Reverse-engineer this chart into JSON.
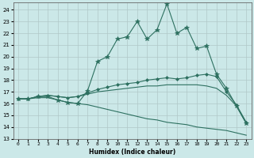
{
  "xlabel": "Humidex (Indice chaleur)",
  "background_color": "#cbe8e8",
  "grid_color": "#b0c8c8",
  "line_color": "#2d7060",
  "xlim": [
    -0.5,
    23.5
  ],
  "ylim": [
    13,
    24.6
  ],
  "yticks": [
    13,
    14,
    15,
    16,
    17,
    18,
    19,
    20,
    21,
    22,
    23,
    24
  ],
  "xticks": [
    0,
    1,
    2,
    3,
    4,
    5,
    6,
    7,
    8,
    9,
    10,
    11,
    12,
    13,
    14,
    15,
    16,
    17,
    18,
    19,
    20,
    21,
    22,
    23
  ],
  "series": [
    {
      "x": [
        0,
        1,
        2,
        3,
        4,
        5,
        6,
        7,
        8,
        9,
        10,
        11,
        12,
        13,
        14,
        15,
        16,
        17,
        18,
        19,
        20,
        21,
        22,
        23
      ],
      "y": [
        16.4,
        16.4,
        16.6,
        16.6,
        16.3,
        16.1,
        16.0,
        17.1,
        19.6,
        20.0,
        21.5,
        21.7,
        23.0,
        21.5,
        22.3,
        24.5,
        22.0,
        22.5,
        20.7,
        20.9,
        18.5,
        17.3,
        15.8,
        14.3
      ],
      "marker": "*",
      "markersize": 4.0,
      "linewidth": 0.8
    },
    {
      "x": [
        0,
        1,
        2,
        3,
        4,
        5,
        6,
        7,
        8,
        9,
        10,
        11,
        12,
        13,
        14,
        15,
        16,
        17,
        18,
        19,
        20,
        21,
        22,
        23
      ],
      "y": [
        16.4,
        16.4,
        16.6,
        16.7,
        16.6,
        16.5,
        16.6,
        16.9,
        17.2,
        17.4,
        17.6,
        17.7,
        17.8,
        18.0,
        18.1,
        18.2,
        18.1,
        18.2,
        18.4,
        18.5,
        18.3,
        17.0,
        15.9,
        14.4
      ],
      "marker": "D",
      "markersize": 2.0,
      "linewidth": 0.8
    },
    {
      "x": [
        0,
        1,
        2,
        3,
        4,
        5,
        6,
        7,
        8,
        9,
        10,
        11,
        12,
        13,
        14,
        15,
        16,
        17,
        18,
        19,
        20,
        21,
        22,
        23
      ],
      "y": [
        16.4,
        16.4,
        16.6,
        16.7,
        16.6,
        16.5,
        16.6,
        16.8,
        17.0,
        17.1,
        17.2,
        17.3,
        17.4,
        17.5,
        17.5,
        17.6,
        17.6,
        17.6,
        17.6,
        17.5,
        17.3,
        16.7,
        15.8,
        14.3
      ],
      "marker": null,
      "markersize": 0,
      "linewidth": 0.8
    },
    {
      "x": [
        0,
        1,
        2,
        3,
        4,
        5,
        6,
        7,
        8,
        9,
        10,
        11,
        12,
        13,
        14,
        15,
        16,
        17,
        18,
        19,
        20,
        21,
        22,
        23
      ],
      "y": [
        16.4,
        16.4,
        16.5,
        16.5,
        16.3,
        16.1,
        16.0,
        15.9,
        15.7,
        15.5,
        15.3,
        15.1,
        14.9,
        14.7,
        14.6,
        14.4,
        14.3,
        14.2,
        14.0,
        13.9,
        13.8,
        13.7,
        13.5,
        13.3
      ],
      "marker": null,
      "markersize": 0,
      "linewidth": 0.8
    }
  ]
}
